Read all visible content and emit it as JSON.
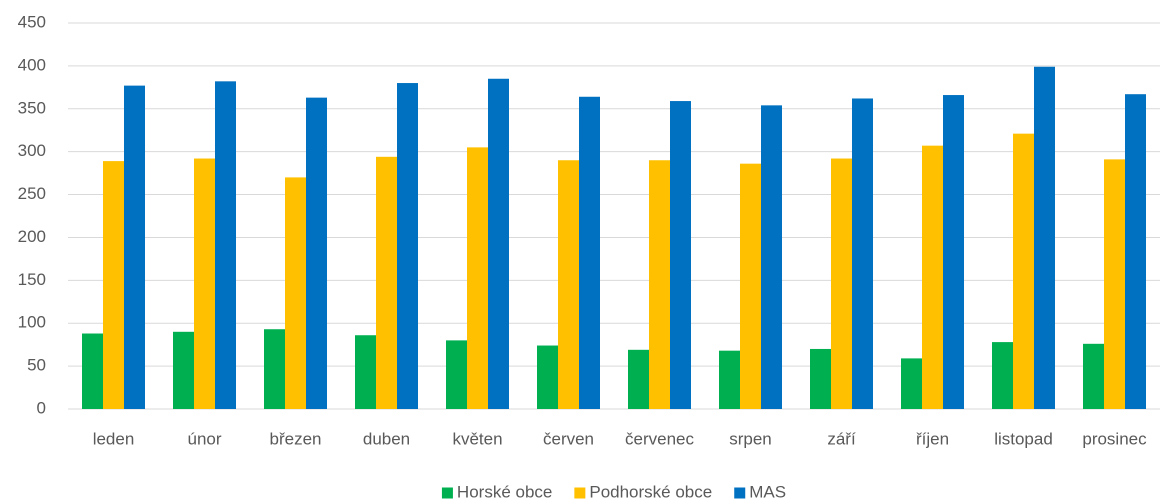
{
  "chart_data": {
    "type": "bar",
    "categories": [
      "leden",
      "únor",
      "březen",
      "duben",
      "květen",
      "červen",
      "červenec",
      "srpen",
      "září",
      "říjen",
      "listopad",
      "prosinec"
    ],
    "series": [
      {
        "name": "Horské obce",
        "color": "#00b050",
        "values": [
          88,
          90,
          93,
          86,
          80,
          74,
          69,
          68,
          70,
          59,
          78,
          76
        ]
      },
      {
        "name": "Podhorské obce",
        "color": "#ffc000",
        "values": [
          289,
          292,
          270,
          294,
          305,
          290,
          290,
          286,
          292,
          307,
          321,
          291
        ]
      },
      {
        "name": "MAS",
        "color": "#0070c0",
        "values": [
          377,
          382,
          363,
          380,
          385,
          364,
          359,
          354,
          362,
          366,
          399,
          367
        ]
      }
    ],
    "ylim": [
      0,
      450
    ],
    "yticks": [
      0,
      50,
      100,
      150,
      200,
      250,
      300,
      350,
      400,
      450
    ],
    "grid": true,
    "legend": "bottom"
  }
}
